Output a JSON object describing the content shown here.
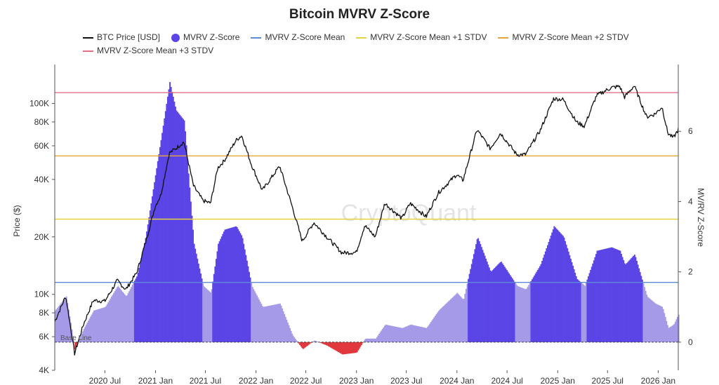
{
  "chart_data": {
    "type": "bar",
    "title": "Bitcoin MVRV Z-Score",
    "ylabel_left": "Price ($)",
    "ylabel_right": "MV/RV Z-Score",
    "watermark": "CryptoQuant",
    "baseline_label": "Base Line",
    "legend": [
      {
        "name": "BTC Price [USD]",
        "color": "#111111",
        "kind": "line"
      },
      {
        "name": "MVRV Z-Score",
        "color": "#5b45e6",
        "kind": "dot"
      },
      {
        "name": "MVRV Z-Score Mean",
        "color": "#5b8ad6",
        "kind": "line"
      },
      {
        "name": "MVRV Z-Score Mean +1 STDV",
        "color": "#e6d23c",
        "kind": "line"
      },
      {
        "name": "MVRV Z-Score Mean +2 STDV",
        "color": "#e6a43c",
        "kind": "line"
      },
      {
        "name": "MVRV Z-Score Mean +3 STDV",
        "color": "#e07088",
        "kind": "line"
      }
    ],
    "x_ticks": [
      "2020 Jul",
      "2021 Jan",
      "2021 Jul",
      "2022 Jan",
      "2022 Jul",
      "2023 Jan",
      "2023 Jul",
      "2024 Jan",
      "2024 Jul",
      "2025 Jan",
      "2025 Jul",
      "2026 Jan"
    ],
    "x_tick_dates": [
      "2020-07-01",
      "2021-01-01",
      "2021-07-01",
      "2022-01-01",
      "2022-07-01",
      "2023-01-01",
      "2023-07-01",
      "2024-01-01",
      "2024-07-01",
      "2025-01-01",
      "2025-07-01",
      "2026-01-01"
    ],
    "x_range": [
      "2020-01-01",
      "2026-03-15"
    ],
    "y_left": {
      "scale": "log",
      "ticks": [
        4000,
        6000,
        8000,
        10000,
        20000,
        40000,
        60000,
        80000,
        100000
      ],
      "tick_labels": [
        "4K",
        "6K",
        "8K",
        "10K",
        "20K",
        "40K",
        "60K",
        "80K",
        "100K"
      ],
      "range": [
        4000,
        160000
      ]
    },
    "y_right": {
      "scale": "linear",
      "ticks": [
        0,
        2,
        4,
        6
      ],
      "range": [
        -0.8,
        7.9
      ]
    },
    "reference_lines": [
      {
        "name": "MVRV Z-Score Mean",
        "value": 1.7,
        "color": "#5b8ad6"
      },
      {
        "name": "MVRV Z-Score Mean +1 STDV",
        "value": 3.5,
        "color": "#e6d23c"
      },
      {
        "name": "MVRV Z-Score Mean +2 STDV",
        "value": 5.3,
        "color": "#e6a43c"
      },
      {
        "name": "MVRV Z-Score Mean +3 STDV",
        "value": 7.1,
        "color": "#e07088"
      }
    ],
    "colors": {
      "zscore_strong": "#5b45e6",
      "zscore_weak": "#a59ae8",
      "zscore_negative": "#e0383c",
      "price": "#111111"
    },
    "series": [
      {
        "name": "BTC Price [USD]",
        "axis": "left",
        "points": [
          [
            "2020-01-01",
            7200
          ],
          [
            "2020-02-10",
            9800
          ],
          [
            "2020-03-13",
            4900
          ],
          [
            "2020-04-15",
            7000
          ],
          [
            "2020-05-20",
            9300
          ],
          [
            "2020-07-01",
            9200
          ],
          [
            "2020-08-15",
            11800
          ],
          [
            "2020-09-15",
            10600
          ],
          [
            "2020-10-25",
            13000
          ],
          [
            "2020-11-25",
            18500
          ],
          [
            "2020-12-31",
            29000
          ],
          [
            "2021-01-20",
            33000
          ],
          [
            "2021-02-20",
            55000
          ],
          [
            "2021-03-15",
            58000
          ],
          [
            "2021-04-14",
            63000
          ],
          [
            "2021-05-19",
            37000
          ],
          [
            "2021-06-22",
            31000
          ],
          [
            "2021-07-20",
            30000
          ],
          [
            "2021-08-15",
            46000
          ],
          [
            "2021-09-07",
            50000
          ],
          [
            "2021-10-20",
            64000
          ],
          [
            "2021-11-10",
            68000
          ],
          [
            "2021-12-15",
            48000
          ],
          [
            "2022-01-24",
            35000
          ],
          [
            "2022-03-28",
            47000
          ],
          [
            "2022-05-12",
            29000
          ],
          [
            "2022-06-18",
            19000
          ],
          [
            "2022-07-30",
            23800
          ],
          [
            "2022-09-15",
            20000
          ],
          [
            "2022-11-09",
            16500
          ],
          [
            "2022-12-31",
            16600
          ],
          [
            "2023-01-31",
            23000
          ],
          [
            "2023-03-10",
            20000
          ],
          [
            "2023-04-14",
            30000
          ],
          [
            "2023-06-15",
            25000
          ],
          [
            "2023-07-15",
            30000
          ],
          [
            "2023-09-11",
            25500
          ],
          [
            "2023-10-25",
            34000
          ],
          [
            "2023-12-31",
            42500
          ],
          [
            "2024-01-23",
            39500
          ],
          [
            "2024-03-14",
            73000
          ],
          [
            "2024-05-01",
            58000
          ],
          [
            "2024-06-07",
            70000
          ],
          [
            "2024-08-05",
            54000
          ],
          [
            "2024-09-06",
            54000
          ],
          [
            "2024-10-29",
            72000
          ],
          [
            "2024-12-17",
            106000
          ],
          [
            "2025-01-21",
            105000
          ],
          [
            "2025-03-10",
            80000
          ],
          [
            "2025-04-08",
            76000
          ],
          [
            "2025-05-22",
            110000
          ],
          [
            "2025-07-14",
            121000
          ],
          [
            "2025-08-14",
            123000
          ],
          [
            "2025-09-01",
            108000
          ],
          [
            "2025-10-06",
            124000
          ],
          [
            "2025-11-20",
            85000
          ],
          [
            "2025-12-20",
            88000
          ],
          [
            "2026-01-15",
            96000
          ],
          [
            "2026-02-05",
            70000
          ],
          [
            "2026-02-25",
            66000
          ],
          [
            "2026-03-15",
            73000
          ]
        ]
      },
      {
        "name": "MVRV Z-Score",
        "axis": "right",
        "points": [
          [
            "2020-01-01",
            0.9
          ],
          [
            "2020-02-10",
            1.3
          ],
          [
            "2020-03-13",
            -0.2
          ],
          [
            "2020-04-15",
            0.4
          ],
          [
            "2020-05-20",
            0.9
          ],
          [
            "2020-07-01",
            1.0
          ],
          [
            "2020-08-15",
            1.6
          ],
          [
            "2020-09-15",
            1.3
          ],
          [
            "2020-10-25",
            1.9
          ],
          [
            "2020-11-25",
            3.0
          ],
          [
            "2020-12-31",
            4.8
          ],
          [
            "2021-01-20",
            5.8
          ],
          [
            "2021-02-20",
            7.4
          ],
          [
            "2021-03-15",
            6.6
          ],
          [
            "2021-04-14",
            6.3
          ],
          [
            "2021-05-19",
            2.8
          ],
          [
            "2021-06-22",
            1.6
          ],
          [
            "2021-07-20",
            1.4
          ],
          [
            "2021-08-15",
            2.8
          ],
          [
            "2021-09-07",
            3.2
          ],
          [
            "2021-10-20",
            3.3
          ],
          [
            "2021-11-10",
            3.0
          ],
          [
            "2021-12-15",
            1.6
          ],
          [
            "2022-01-24",
            1.0
          ],
          [
            "2022-03-28",
            1.1
          ],
          [
            "2022-05-12",
            0.2
          ],
          [
            "2022-06-18",
            -0.2
          ],
          [
            "2022-07-30",
            0.05
          ],
          [
            "2022-09-15",
            -0.1
          ],
          [
            "2022-11-09",
            -0.35
          ],
          [
            "2022-12-31",
            -0.3
          ],
          [
            "2023-01-31",
            0.1
          ],
          [
            "2023-03-10",
            0.1
          ],
          [
            "2023-04-14",
            0.5
          ],
          [
            "2023-06-15",
            0.4
          ],
          [
            "2023-07-15",
            0.5
          ],
          [
            "2023-09-11",
            0.4
          ],
          [
            "2023-10-25",
            0.9
          ],
          [
            "2023-12-31",
            1.4
          ],
          [
            "2024-01-23",
            1.2
          ],
          [
            "2024-03-14",
            3.0
          ],
          [
            "2024-05-01",
            2.0
          ],
          [
            "2024-06-07",
            2.3
          ],
          [
            "2024-08-05",
            1.6
          ],
          [
            "2024-09-06",
            1.5
          ],
          [
            "2024-10-29",
            2.2
          ],
          [
            "2024-12-17",
            3.3
          ],
          [
            "2025-01-21",
            3.0
          ],
          [
            "2025-03-10",
            1.8
          ],
          [
            "2025-04-08",
            1.6
          ],
          [
            "2025-05-22",
            2.6
          ],
          [
            "2025-07-14",
            2.7
          ],
          [
            "2025-08-14",
            2.6
          ],
          [
            "2025-09-01",
            2.2
          ],
          [
            "2025-10-06",
            2.5
          ],
          [
            "2025-11-20",
            1.3
          ],
          [
            "2025-12-20",
            1.1
          ],
          [
            "2026-01-15",
            1.0
          ],
          [
            "2026-02-05",
            0.4
          ],
          [
            "2026-02-25",
            0.5
          ],
          [
            "2026-03-15",
            0.8
          ]
        ]
      }
    ]
  }
}
